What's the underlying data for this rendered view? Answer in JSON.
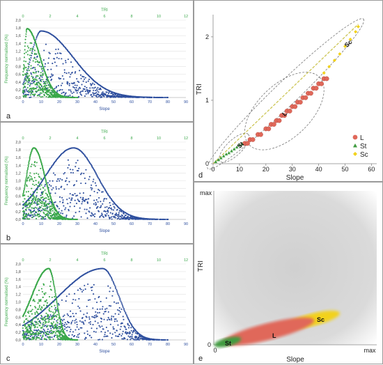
{
  "panels": {
    "a": {
      "letter": "a",
      "top_axis_label": "TRI",
      "top_ticks": [
        "0",
        "2",
        "4",
        "6",
        "8",
        "10",
        "12"
      ],
      "bottom_axis_label": "Slope",
      "bottom_ticks": [
        "0",
        "10",
        "20",
        "30",
        "40",
        "50",
        "60",
        "70",
        "80",
        "90"
      ],
      "y_label": "Frequency normalised (%)",
      "y_ticks": [
        "0,0",
        "0,2",
        "0,4",
        "0,6",
        "0,8",
        "1,0",
        "1,2",
        "1,4",
        "1,6",
        "1,8",
        "2,0"
      ]
    },
    "b": {
      "letter": "b",
      "top_axis_label": "TRI",
      "top_ticks": [
        "0",
        "2",
        "4",
        "6",
        "8",
        "10",
        "12"
      ],
      "bottom_axis_label": "Slope",
      "bottom_ticks": [
        "0",
        "10",
        "20",
        "30",
        "40",
        "50",
        "60",
        "70",
        "80",
        "90"
      ],
      "y_label": "Frequency normalised (%)",
      "y_ticks": [
        "0,0",
        "0,2",
        "0,4",
        "0,6",
        "0,8",
        "1,0",
        "1,2",
        "1,4",
        "1,6",
        "1,8",
        "2,0"
      ]
    },
    "c": {
      "letter": "c",
      "top_axis_label": "TRI",
      "top_ticks": [
        "0",
        "2",
        "4",
        "6",
        "8",
        "10",
        "12"
      ],
      "bottom_axis_label": "Slope",
      "bottom_ticks": [
        "0",
        "10",
        "20",
        "30",
        "40",
        "50",
        "60",
        "70",
        "80",
        "90"
      ],
      "y_label": "Frequency normalised (%)",
      "y_ticks": [
        "0,0",
        "0,2",
        "0,4",
        "0,6",
        "0,8",
        "1,0",
        "1,2",
        "1,4",
        "1,6",
        "1,8",
        "2,0"
      ]
    },
    "d": {
      "letter": "d",
      "x_label": "Slope",
      "y_label": "TRI",
      "x_ticks": [
        "0",
        "10",
        "20",
        "30",
        "40",
        "50",
        "60"
      ],
      "y_ticks": [
        "0",
        "1",
        "2"
      ],
      "legend": [
        "L",
        "St",
        "Sc"
      ],
      "ellipse_labels": [
        "St",
        "L",
        "Sc"
      ]
    },
    "e": {
      "letter": "e",
      "x_label": "Slope",
      "y_label": "TRI",
      "x_min": "0",
      "x_max": "max",
      "y_min": "0",
      "y_max": "max",
      "zone_labels": [
        "St",
        "L",
        "Sc"
      ]
    }
  },
  "colors": {
    "slope_series": "#2e4f9e",
    "tri_series": "#3aa84a",
    "L": "#e0685a",
    "St": "#3f9b3f",
    "Sc": "#f2d21b",
    "trend": "#c9c24a"
  },
  "chart_data": [
    {
      "type": "scatter",
      "panel": "a",
      "title": "",
      "xlabel": "Slope",
      "x2label": "TRI",
      "ylabel": "Frequency normalised (%)",
      "xlim": [
        0,
        90
      ],
      "x2lim": [
        0,
        12
      ],
      "ylim": [
        0,
        2.0
      ],
      "series": [
        {
          "name": "",
          "axis": "bottom",
          "peak_x": 10,
          "peak_y": 1.72,
          "range": [
            0,
            80
          ]
        },
        {
          "name": "",
          "axis": "top",
          "peak_x": 0.3,
          "peak_y": 1.78,
          "range": [
            0,
            4
          ]
        }
      ]
    },
    {
      "type": "scatter",
      "panel": "b",
      "title": "",
      "xlabel": "Slope",
      "x2label": "TRI",
      "ylabel": "Frequency normalised (%)",
      "xlim": [
        0,
        90
      ],
      "x2lim": [
        0,
        12
      ],
      "ylim": [
        0,
        2.0
      ],
      "series": [
        {
          "name": "",
          "axis": "bottom",
          "peak_x": 28,
          "peak_y": 1.85,
          "range": [
            0,
            80
          ]
        },
        {
          "name": "",
          "axis": "top",
          "peak_x": 0.8,
          "peak_y": 1.85,
          "range": [
            0,
            4
          ]
        }
      ]
    },
    {
      "type": "scatter",
      "panel": "c",
      "title": "",
      "xlabel": "Slope",
      "x2label": "TRI",
      "ylabel": "Frequency normalised (%)",
      "xlim": [
        0,
        90
      ],
      "x2lim": [
        0,
        12
      ],
      "ylim": [
        0,
        2.0
      ],
      "series": [
        {
          "name": "",
          "axis": "bottom",
          "peak_x": 44,
          "peak_y": 1.88,
          "range": [
            0,
            80
          ]
        },
        {
          "name": "",
          "axis": "top",
          "peak_x": 1.9,
          "peak_y": 1.88,
          "range": [
            0,
            4
          ]
        }
      ]
    },
    {
      "type": "scatter",
      "panel": "d",
      "title": "",
      "xlabel": "Slope",
      "ylabel": "TRI",
      "xlim": [
        0,
        62
      ],
      "ylim": [
        0,
        2.35
      ],
      "series": [
        {
          "name": "L",
          "x": [
            12,
            14,
            17,
            20,
            22,
            24,
            26,
            28,
            30,
            32,
            34,
            36,
            38,
            40,
            42
          ],
          "y": [
            0.32,
            0.38,
            0.46,
            0.55,
            0.62,
            0.68,
            0.76,
            0.83,
            0.9,
            0.97,
            1.04,
            1.11,
            1.19,
            1.26,
            1.34
          ]
        },
        {
          "name": "St",
          "x": [
            1,
            2,
            3,
            4,
            5,
            6,
            7,
            8,
            9,
            10,
            11
          ],
          "y": [
            0.03,
            0.06,
            0.09,
            0.12,
            0.15,
            0.17,
            0.2,
            0.23,
            0.26,
            0.29,
            0.31
          ]
        },
        {
          "name": "Sc",
          "x": [
            42,
            44,
            46,
            48,
            50,
            52,
            54,
            55
          ],
          "y": [
            1.43,
            1.53,
            1.63,
            1.73,
            1.85,
            1.96,
            2.08,
            2.16
          ]
        }
      ]
    },
    {
      "type": "area",
      "panel": "e",
      "title": "",
      "xlabel": "Slope",
      "ylabel": "TRI",
      "zones": [
        "St",
        "L",
        "Sc"
      ]
    }
  ]
}
